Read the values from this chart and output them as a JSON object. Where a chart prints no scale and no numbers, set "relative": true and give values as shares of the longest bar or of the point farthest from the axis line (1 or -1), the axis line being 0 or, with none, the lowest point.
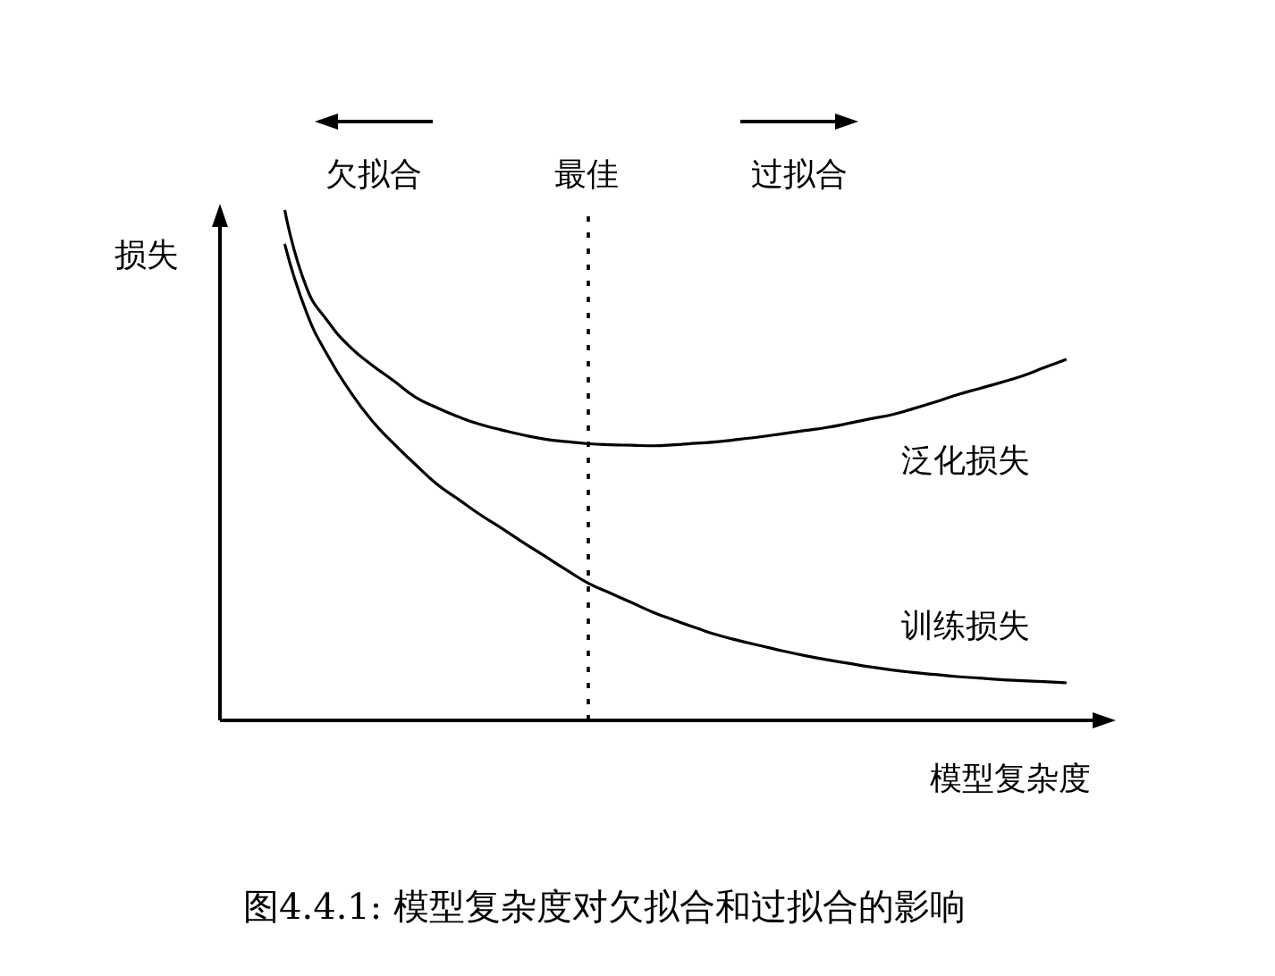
{
  "chart_data": {
    "type": "line",
    "relative": true,
    "xlabel": "模型复杂度",
    "ylabel": "损失",
    "categories": [
      null,
      null,
      null,
      null,
      null,
      null,
      null,
      null,
      null,
      null,
      null,
      null,
      null,
      null,
      null,
      null,
      null,
      null,
      null,
      null,
      null,
      null,
      null,
      null,
      null,
      null,
      null,
      null,
      null,
      null,
      null,
      null,
      null,
      null,
      null,
      null,
      null,
      null,
      null,
      null,
      null,
      null
    ],
    "series": [
      {
        "name": "泛化损失",
        "color": "#000000",
        "values": [
          null,
          null,
          null,
          1.0,
          0.849,
          0.782,
          0.733,
          0.698,
          0.667,
          0.635,
          0.614,
          0.596,
          0.581,
          0.57,
          0.56,
          0.552,
          0.547,
          0.543,
          0.541,
          0.54,
          0.539,
          0.541,
          0.544,
          0.547,
          0.552,
          0.557,
          0.563,
          0.569,
          0.575,
          0.583,
          0.592,
          0.6,
          0.612,
          0.625,
          0.639,
          0.651,
          0.663,
          0.676,
          0.692,
          0.708,
          null,
          null
        ]
      },
      {
        "name": "训练损失",
        "color": "#000000",
        "values": [
          null,
          null,
          null,
          0.933,
          0.8,
          0.714,
          0.646,
          0.589,
          0.544,
          0.503,
          0.464,
          0.434,
          0.404,
          0.377,
          0.349,
          0.322,
          0.295,
          0.269,
          0.25,
          0.231,
          0.212,
          0.196,
          0.181,
          0.167,
          0.156,
          0.146,
          0.136,
          0.127,
          0.119,
          0.112,
          0.105,
          0.099,
          0.094,
          0.09,
          0.086,
          0.083,
          0.08,
          0.078,
          0.076,
          0.074,
          null,
          null
        ]
      }
    ],
    "annotations": [
      "欠拟合",
      "最佳",
      "过拟合",
      "图4.4.1: 模型复杂度对欠拟合和过拟合的影响"
    ],
    "marker": "none"
  }
}
